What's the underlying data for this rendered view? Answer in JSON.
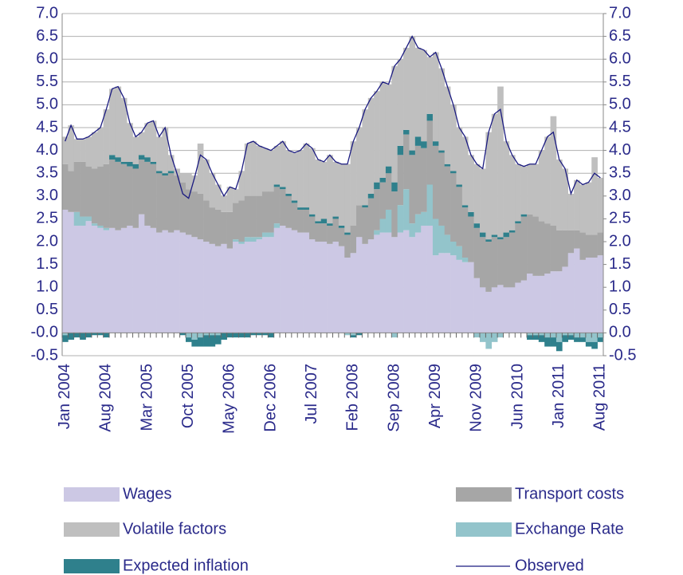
{
  "chart_data": {
    "type": "bar",
    "stacked": true,
    "categories": [
      "Jan 2004",
      null,
      null,
      null,
      null,
      null,
      null,
      "Aug 2004",
      null,
      null,
      null,
      null,
      null,
      null,
      "Mar 2005",
      null,
      null,
      null,
      null,
      null,
      null,
      "Oct 2005",
      null,
      null,
      null,
      null,
      null,
      null,
      "May 2006",
      null,
      null,
      null,
      null,
      null,
      null,
      "Dec 2006",
      null,
      null,
      null,
      null,
      null,
      null,
      "Jul 2007",
      null,
      null,
      null,
      null,
      null,
      null,
      "Feb 2008",
      null,
      null,
      null,
      null,
      null,
      null,
      "Sep 2008",
      null,
      null,
      null,
      null,
      null,
      null,
      "Apr 2009",
      null,
      null,
      null,
      null,
      null,
      null,
      "Nov 2009",
      null,
      null,
      null,
      null,
      null,
      null,
      "Jun 2010",
      null,
      null,
      null,
      null,
      null,
      null,
      "Jan 2011",
      null,
      null,
      null,
      null,
      null,
      null,
      "Aug 2011"
    ],
    "series": [
      {
        "name": "Wages",
        "color": "#ccc8e4",
        "values": [
          2.7,
          2.65,
          2.35,
          2.35,
          2.45,
          2.35,
          2.3,
          2.25,
          2.3,
          2.25,
          2.3,
          2.35,
          2.3,
          2.6,
          2.35,
          2.3,
          2.2,
          2.25,
          2.2,
          2.25,
          2.2,
          2.15,
          2.1,
          2.05,
          2.0,
          1.95,
          1.9,
          1.95,
          1.85,
          2.0,
          1.95,
          2.0,
          2.0,
          2.05,
          2.1,
          2.1,
          2.3,
          2.35,
          2.3,
          2.25,
          2.2,
          2.2,
          2.05,
          2.0,
          2.0,
          1.95,
          2.0,
          1.9,
          1.65,
          1.75,
          2.1,
          1.95,
          2.05,
          2.15,
          2.2,
          2.2,
          2.1,
          2.2,
          2.25,
          2.1,
          2.2,
          2.35,
          2.35,
          1.7,
          1.75,
          1.75,
          1.7,
          1.6,
          1.55,
          1.55,
          1.2,
          1.0,
          0.9,
          1.0,
          1.05,
          1.0,
          1.0,
          1.1,
          1.15,
          1.3,
          1.25,
          1.25,
          1.3,
          1.35,
          1.35,
          1.45,
          1.75,
          1.85,
          1.6,
          1.65,
          1.65,
          1.7
        ]
      },
      {
        "name": "Exchange Rate",
        "color": "#93c4cb",
        "values": [
          -0.05,
          0,
          0.3,
          0.2,
          0.1,
          0.05,
          0.05,
          0.05,
          0,
          0,
          0,
          0,
          0,
          0,
          0,
          0,
          0,
          0,
          0,
          0,
          0,
          -0.1,
          -0.15,
          -0.1,
          -0.05,
          -0.05,
          -0.05,
          0,
          0,
          0.05,
          0.05,
          0.1,
          0.1,
          0.05,
          0.1,
          0.1,
          0.1,
          0,
          0,
          0,
          0,
          0,
          0,
          0,
          0,
          0,
          0,
          0,
          -0.05,
          -0.05,
          0,
          0,
          0,
          0.1,
          0.3,
          0.5,
          -0.1,
          0.6,
          0.9,
          0.3,
          0.4,
          0.3,
          0.9,
          0.8,
          0.6,
          0.4,
          0.3,
          0.3,
          0.1,
          0,
          -0.1,
          -0.2,
          -0.35,
          -0.2,
          -0.1,
          0,
          0,
          0,
          0,
          -0.05,
          -0.05,
          -0.05,
          -0.1,
          -0.1,
          -0.2,
          -0.05,
          -0.05,
          -0.1,
          -0.1,
          -0.2,
          -0.2,
          -0.1
        ]
      },
      {
        "name": "Transport costs",
        "color": "#a6a6a6",
        "values": [
          1.0,
          0.9,
          1.1,
          1.2,
          1.1,
          1.2,
          1.3,
          1.4,
          1.5,
          1.5,
          1.4,
          1.3,
          1.3,
          1.2,
          1.4,
          1.4,
          1.3,
          1.2,
          1.3,
          1.2,
          1.1,
          1.0,
          1.0,
          1.0,
          0.9,
          0.8,
          0.8,
          0.7,
          0.8,
          0.8,
          0.9,
          0.9,
          0.9,
          0.9,
          0.9,
          0.9,
          0.8,
          0.8,
          0.7,
          0.6,
          0.5,
          0.5,
          0.5,
          0.4,
          0.4,
          0.4,
          0.5,
          0.4,
          0.5,
          0.6,
          0.7,
          0.8,
          0.9,
          0.9,
          0.8,
          0.8,
          1.0,
          1.1,
          1.2,
          1.5,
          1.5,
          1.4,
          1.4,
          1.6,
          1.6,
          1.5,
          1.5,
          1.3,
          1.1,
          1.0,
          1.1,
          1.1,
          1.1,
          1.1,
          1.0,
          1.1,
          1.2,
          1.3,
          1.4,
          1.3,
          1.3,
          1.2,
          1.1,
          1.0,
          0.9,
          0.8,
          0.5,
          0.4,
          0.6,
          0.5,
          0.5,
          0.5
        ]
      },
      {
        "name": "Expected inflation",
        "color": "#2f808c",
        "values": [
          -0.15,
          -0.15,
          -0.1,
          -0.15,
          -0.1,
          -0.05,
          -0.05,
          -0.1,
          0.1,
          0.1,
          0.05,
          0.1,
          0.1,
          0.1,
          0.1,
          0.05,
          0.05,
          0.05,
          0.05,
          0,
          -0.05,
          -0.1,
          -0.15,
          -0.2,
          -0.25,
          -0.25,
          -0.2,
          -0.15,
          -0.1,
          -0.1,
          -0.1,
          -0.1,
          -0.05,
          -0.05,
          -0.05,
          -0.1,
          0.05,
          0.05,
          0.05,
          0.05,
          0.05,
          0.05,
          0.05,
          0.05,
          0.1,
          0.05,
          0.05,
          0.05,
          0.05,
          -0.05,
          -0.05,
          0.05,
          0.1,
          0.15,
          0.1,
          0.15,
          0.2,
          0.2,
          0.1,
          0.1,
          0.2,
          0.15,
          0.15,
          0.1,
          0.05,
          0.05,
          0.05,
          0.05,
          0.05,
          0.1,
          0.1,
          0.1,
          0.05,
          0.05,
          0.05,
          0.1,
          0.05,
          0.05,
          0.05,
          -0.1,
          -0.1,
          -0.15,
          -0.2,
          -0.2,
          -0.2,
          -0.15,
          -0.1,
          -0.1,
          -0.1,
          -0.1,
          -0.15,
          -0.1
        ]
      },
      {
        "name": "Volatile factors",
        "color": "#bfbfbf",
        "values": [
          0.6,
          1.0,
          0.5,
          0.5,
          0.65,
          0.8,
          0.85,
          1.2,
          1.45,
          1.55,
          1.4,
          0.85,
          0.6,
          0.5,
          0.75,
          0.9,
          0.75,
          1.0,
          0.35,
          0.15,
          0.2,
          0.35,
          0.35,
          1.1,
          0.9,
          0.75,
          0.55,
          0.35,
          0.55,
          0.3,
          0.65,
          1.15,
          1.2,
          1.1,
          0.95,
          0.9,
          0.85,
          1.0,
          0.95,
          1.05,
          1.25,
          1.4,
          1.45,
          1.35,
          1.25,
          1.5,
          1.2,
          1.35,
          1.5,
          1.85,
          1.7,
          2.1,
          2.1,
          2.0,
          2.1,
          1.8,
          2.55,
          1.9,
          1.8,
          2.5,
          1.95,
          2.0,
          1.25,
          1.95,
          1.8,
          1.7,
          1.45,
          1.25,
          1.5,
          1.25,
          1.3,
          1.4,
          2.35,
          2.65,
          3.3,
          2.0,
          1.65,
          1.25,
          1.05,
          1.1,
          1.15,
          1.55,
          1.9,
          2.4,
          1.55,
          1.35,
          0.8,
          1.1,
          1.05,
          1.15,
          1.7,
          1.2
        ]
      },
      {
        "name": "Observed",
        "type": "line",
        "color": "#1a1a80",
        "values": [
          4.2,
          4.55,
          4.25,
          4.25,
          4.3,
          4.4,
          4.5,
          4.9,
          5.35,
          5.4,
          5.15,
          4.6,
          4.3,
          4.4,
          4.6,
          4.65,
          4.3,
          4.5,
          3.9,
          3.5,
          3.05,
          2.95,
          3.4,
          3.9,
          3.8,
          3.5,
          3.25,
          3.0,
          3.2,
          3.15,
          3.55,
          4.15,
          4.2,
          4.1,
          4.05,
          4.0,
          4.1,
          4.2,
          4.0,
          3.95,
          4.0,
          4.15,
          4.05,
          3.8,
          3.75,
          3.9,
          3.75,
          3.7,
          3.7,
          4.2,
          4.5,
          4.9,
          5.15,
          5.3,
          5.5,
          5.45,
          5.85,
          6.0,
          6.25,
          6.5,
          6.25,
          6.2,
          6.05,
          6.15,
          5.8,
          5.4,
          5.0,
          4.5,
          4.3,
          3.9,
          3.7,
          3.6,
          4.4,
          4.8,
          4.9,
          4.2,
          3.9,
          3.7,
          3.65,
          3.7,
          3.7,
          4.0,
          4.3,
          4.4,
          3.8,
          3.6,
          3.05,
          3.35,
          3.25,
          3.3,
          3.5,
          3.4
        ]
      }
    ],
    "ylim": [
      -0.5,
      7
    ],
    "yticks": [
      -0.5,
      {
        "value": 0,
        "label": "-0.0"
      },
      0.5,
      {
        "value": 1,
        "label": "1.0"
      },
      1.5,
      {
        "value": 2,
        "label": "2.0"
      },
      2.5,
      {
        "value": 3,
        "label": "3.0"
      },
      3.5,
      {
        "value": 4,
        "label": "4.0"
      },
      4.5,
      {
        "value": 5,
        "label": "5.0"
      },
      5.5,
      {
        "value": 6,
        "label": "6.0"
      },
      6.5,
      {
        "value": 7,
        "label": "7.0"
      }
    ],
    "y2lim": [
      -0.5,
      7
    ],
    "y2ticks": [
      -0.5,
      {
        "value": 0,
        "label": "0.0"
      },
      0.5,
      {
        "value": 1,
        "label": "1.0"
      },
      1.5,
      {
        "value": 2,
        "label": "2.0"
      },
      2.5,
      {
        "value": 3,
        "label": "3.0"
      },
      3.5,
      {
        "value": 4,
        "label": "4.0"
      },
      4.5,
      {
        "value": 5,
        "label": "5.0"
      },
      5.5,
      {
        "value": 6,
        "label": "6.0"
      },
      6.5,
      {
        "value": 7,
        "label": "7.0"
      }
    ],
    "grid": true
  }
}
